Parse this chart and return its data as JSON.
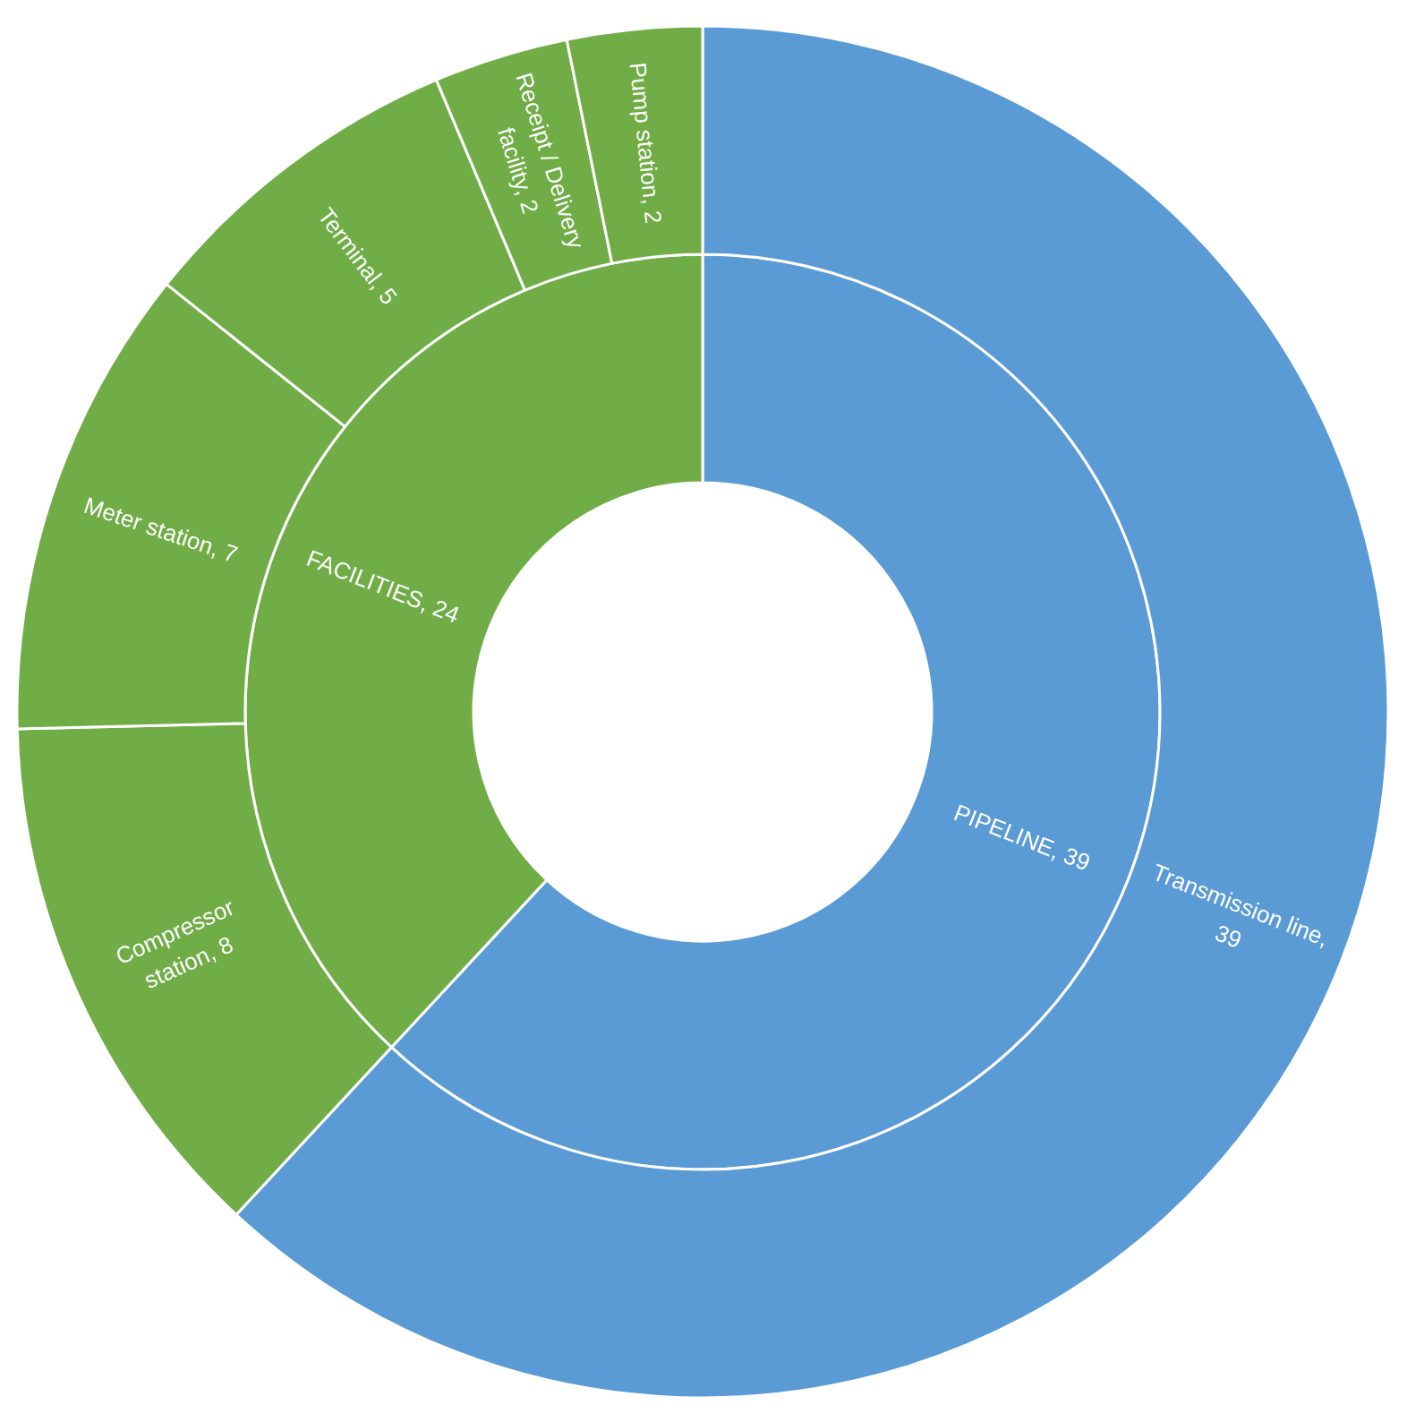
{
  "chart_data": {
    "type": "donut",
    "series": [
      {
        "values": [
          39,
          24
        ],
        "value_labels": [
          "PIPELINE, 39",
          "FACILITIES, 24"
        ],
        "colors": [
          "#5b9bd5",
          "#70ad47"
        ]
      },
      {
        "values": [
          39,
          8,
          7,
          5,
          2,
          2
        ],
        "value_labels": [
          "Transmission line, 39",
          "Compressor station, 8",
          "Meter station, 7",
          "Terminal, 5",
          "Receipt / Delivery facility, 2",
          "Pump station, 2"
        ],
        "colors": [
          "#5b9bd5",
          "#70ad47",
          "#70ad47",
          "#70ad47",
          "#70ad47",
          "#70ad47"
        ]
      }
    ]
  }
}
